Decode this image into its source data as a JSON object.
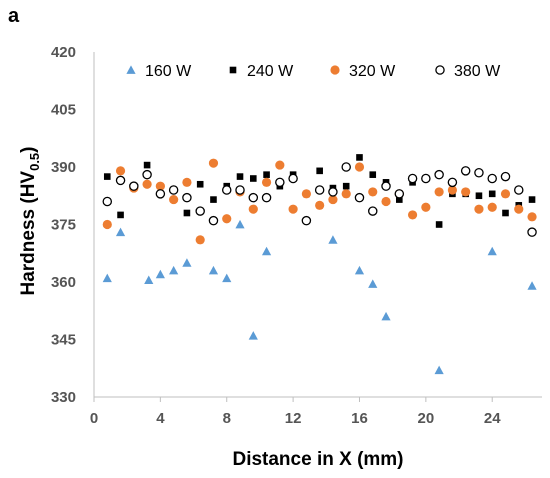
{
  "panel_label": "a",
  "chart_data": {
    "type": "scatter",
    "xlabel": "Distance in X (mm)",
    "ylabel_main": "Hardness (HV",
    "ylabel_sub": "0.5",
    "ylabel_close": ")",
    "xlim": [
      0,
      27
    ],
    "ylim": [
      330,
      420
    ],
    "xticks": [
      0,
      4,
      8,
      12,
      16,
      20,
      24
    ],
    "xtick_labels": [
      "0",
      "4",
      "8",
      "12",
      "16",
      "20",
      "24"
    ],
    "yticks": [
      330,
      345,
      360,
      375,
      390,
      405,
      420
    ],
    "ytick_labels": [
      "330",
      "345",
      "360",
      "375",
      "390",
      "405",
      "420"
    ],
    "grid": false,
    "legend_position": "top",
    "series": [
      {
        "name": "160 W",
        "marker": "triangle",
        "color": "#5b9bd5",
        "points": [
          [
            0.8,
            361
          ],
          [
            1.6,
            373
          ],
          [
            3.3,
            360.5
          ],
          [
            4.0,
            362
          ],
          [
            4.8,
            363
          ],
          [
            5.6,
            365
          ],
          [
            7.2,
            363
          ],
          [
            8.0,
            361
          ],
          [
            8.8,
            375
          ],
          [
            9.6,
            346
          ],
          [
            10.4,
            368
          ],
          [
            14.4,
            371
          ],
          [
            16.0,
            363
          ],
          [
            16.8,
            359.5
          ],
          [
            17.6,
            351
          ],
          [
            20.8,
            337
          ],
          [
            24.0,
            368
          ],
          [
            26.4,
            359
          ]
        ]
      },
      {
        "name": "240 W",
        "marker": "square",
        "color": "#000000",
        "points": [
          [
            0.8,
            387.5
          ],
          [
            1.6,
            377.5
          ],
          [
            2.4,
            385
          ],
          [
            3.2,
            390.5
          ],
          [
            4.0,
            383
          ],
          [
            4.8,
            384
          ],
          [
            5.6,
            378
          ],
          [
            6.4,
            385.5
          ],
          [
            7.2,
            381.5
          ],
          [
            8.0,
            385
          ],
          [
            8.8,
            387.5
          ],
          [
            9.6,
            387
          ],
          [
            10.4,
            388
          ],
          [
            11.2,
            385
          ],
          [
            12.0,
            388
          ],
          [
            12.8,
            383
          ],
          [
            13.6,
            389
          ],
          [
            14.4,
            384.5
          ],
          [
            15.2,
            385
          ],
          [
            16.0,
            392.5
          ],
          [
            16.8,
            388
          ],
          [
            17.6,
            386
          ],
          [
            18.4,
            381.5
          ],
          [
            19.2,
            386
          ],
          [
            20.0,
            387
          ],
          [
            20.8,
            375
          ],
          [
            21.6,
            383
          ],
          [
            22.4,
            383
          ],
          [
            23.2,
            382.5
          ],
          [
            24.0,
            383
          ],
          [
            24.8,
            378
          ],
          [
            25.6,
            380
          ],
          [
            26.4,
            381.5
          ]
        ]
      },
      {
        "name": "320 W",
        "marker": "circle",
        "color": "#ed7d31",
        "points": [
          [
            0.8,
            375
          ],
          [
            1.6,
            389
          ],
          [
            2.4,
            384.5
          ],
          [
            3.2,
            385.5
          ],
          [
            4.0,
            385
          ],
          [
            4.8,
            381.5
          ],
          [
            5.6,
            386
          ],
          [
            6.4,
            371
          ],
          [
            7.2,
            391
          ],
          [
            8.0,
            376.5
          ],
          [
            8.8,
            383.5
          ],
          [
            9.6,
            379
          ],
          [
            10.4,
            386
          ],
          [
            11.2,
            390.5
          ],
          [
            12.0,
            379
          ],
          [
            12.8,
            383
          ],
          [
            13.6,
            380
          ],
          [
            14.4,
            381.5
          ],
          [
            15.2,
            383
          ],
          [
            16.0,
            390
          ],
          [
            16.8,
            383.5
          ],
          [
            17.6,
            381
          ],
          [
            18.4,
            383
          ],
          [
            19.2,
            377.5
          ],
          [
            20.0,
            379.5
          ],
          [
            20.8,
            383.5
          ],
          [
            21.6,
            384
          ],
          [
            22.4,
            383.5
          ],
          [
            23.2,
            379
          ],
          [
            24.0,
            379.5
          ],
          [
            24.8,
            383
          ],
          [
            25.6,
            379
          ],
          [
            26.4,
            377
          ]
        ]
      },
      {
        "name": "380 W",
        "marker": "open-circle",
        "color": "#000000",
        "points": [
          [
            0.8,
            381
          ],
          [
            1.6,
            386.5
          ],
          [
            2.4,
            385
          ],
          [
            3.2,
            388
          ],
          [
            4.0,
            383
          ],
          [
            4.8,
            384
          ],
          [
            5.6,
            382
          ],
          [
            6.4,
            378.5
          ],
          [
            7.2,
            376
          ],
          [
            8.0,
            384
          ],
          [
            8.8,
            384
          ],
          [
            9.6,
            382
          ],
          [
            10.4,
            382
          ],
          [
            11.2,
            386
          ],
          [
            12.0,
            387
          ],
          [
            12.8,
            376
          ],
          [
            13.6,
            384
          ],
          [
            14.4,
            383.5
          ],
          [
            15.2,
            390
          ],
          [
            16.0,
            382
          ],
          [
            16.8,
            378.5
          ],
          [
            17.6,
            385
          ],
          [
            18.4,
            383
          ],
          [
            19.2,
            387
          ],
          [
            20.0,
            387
          ],
          [
            20.8,
            388
          ],
          [
            21.6,
            386
          ],
          [
            22.4,
            389
          ],
          [
            23.2,
            388.5
          ],
          [
            24.0,
            387
          ],
          [
            24.8,
            387.5
          ],
          [
            25.6,
            384
          ],
          [
            26.4,
            373
          ]
        ]
      }
    ]
  }
}
